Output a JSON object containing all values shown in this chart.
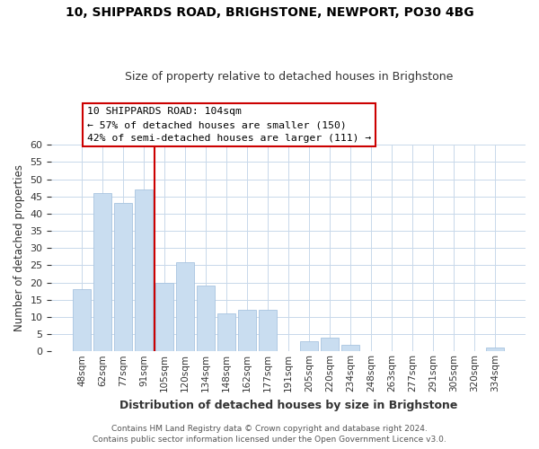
{
  "title": "10, SHIPPARDS ROAD, BRIGHSTONE, NEWPORT, PO30 4BG",
  "subtitle": "Size of property relative to detached houses in Brighstone",
  "xlabel": "Distribution of detached houses by size in Brighstone",
  "ylabel": "Number of detached properties",
  "bar_labels": [
    "48sqm",
    "62sqm",
    "77sqm",
    "91sqm",
    "105sqm",
    "120sqm",
    "134sqm",
    "148sqm",
    "162sqm",
    "177sqm",
    "191sqm",
    "205sqm",
    "220sqm",
    "234sqm",
    "248sqm",
    "263sqm",
    "277sqm",
    "291sqm",
    "305sqm",
    "320sqm",
    "334sqm"
  ],
  "bar_values": [
    18,
    46,
    43,
    47,
    20,
    26,
    19,
    11,
    12,
    12,
    0,
    3,
    4,
    2,
    0,
    0,
    0,
    0,
    0,
    0,
    1
  ],
  "bar_color": "#c9ddf0",
  "bar_edge_color": "#a8c4e0",
  "vline_index": 4,
  "vline_color": "#cc0000",
  "ylim": [
    0,
    60
  ],
  "yticks": [
    0,
    5,
    10,
    15,
    20,
    25,
    30,
    35,
    40,
    45,
    50,
    55,
    60
  ],
  "annotation_title": "10 SHIPPARDS ROAD: 104sqm",
  "annotation_line1": "← 57% of detached houses are smaller (150)",
  "annotation_line2": "42% of semi-detached houses are larger (111) →",
  "footer1": "Contains HM Land Registry data © Crown copyright and database right 2024.",
  "footer2": "Contains public sector information licensed under the Open Government Licence v3.0.",
  "title_fontsize": 10,
  "subtitle_fontsize": 9,
  "bar_color_highlight": "#c9ddf0"
}
